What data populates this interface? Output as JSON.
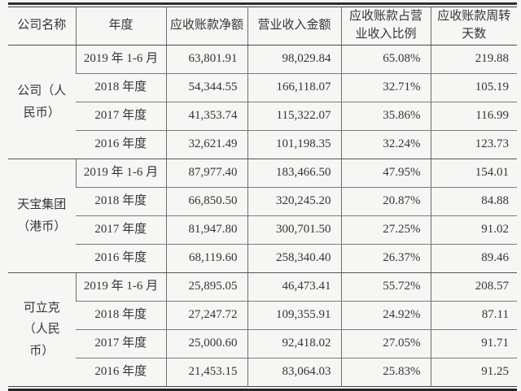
{
  "table": {
    "headers": {
      "company": "公司名称",
      "period": "年度",
      "receivables": "应收账款净额",
      "revenue": "营业收入金额",
      "ratio": "应收账款占营\n业收入比例",
      "days": "应收账款周转\n天数"
    },
    "groups": [
      {
        "company": "公司（人\n民币）",
        "rows": [
          {
            "year": "2019 年 1-6 月",
            "receivables": "63,801.91",
            "revenue": "98,029.84",
            "ratio": "65.08%",
            "days": "219.88"
          },
          {
            "year": "2018 年度",
            "receivables": "54,344.55",
            "revenue": "166,118.07",
            "ratio": "32.71%",
            "days": "105.19"
          },
          {
            "year": "2017 年度",
            "receivables": "41,353.74",
            "revenue": "115,322.07",
            "ratio": "35.86%",
            "days": "116.99"
          },
          {
            "year": "2016 年度",
            "receivables": "32,621.49",
            "revenue": "101,198.35",
            "ratio": "32.24%",
            "days": "123.73"
          }
        ]
      },
      {
        "company": "天宝集团\n（港币）",
        "rows": [
          {
            "year": "2019 年 1-6 月",
            "receivables": "87,977.40",
            "revenue": "183,466.50",
            "ratio": "47.95%",
            "days": "154.01"
          },
          {
            "year": "2018 年度",
            "receivables": "66,850.50",
            "revenue": "320,245.20",
            "ratio": "20.87%",
            "days": "84.88"
          },
          {
            "year": "2017 年度",
            "receivables": "81,947.80",
            "revenue": "300,701.50",
            "ratio": "27.25%",
            "days": "91.02"
          },
          {
            "year": "2016 年度",
            "receivables": "68,119.60",
            "revenue": "258,340.40",
            "ratio": "26.37%",
            "days": "89.46"
          }
        ]
      },
      {
        "company": "可立克\n（人民\n币）",
        "rows": [
          {
            "year": "2019 年 1-6 月",
            "receivables": "25,895.05",
            "revenue": "46,473.41",
            "ratio": "55.72%",
            "days": "208.57"
          },
          {
            "year": "2018 年度",
            "receivables": "27,247.72",
            "revenue": "109,355.91",
            "ratio": "24.92%",
            "days": "87.11"
          },
          {
            "year": "2017 年度",
            "receivables": "25,000.60",
            "revenue": "92,418.02",
            "ratio": "27.05%",
            "days": "91.71"
          },
          {
            "year": "2016 年度",
            "receivables": "21,453.15",
            "revenue": "83,064.03",
            "ratio": "25.83%",
            "days": "91.25"
          }
        ]
      }
    ],
    "colors": {
      "page_background": "#f6f6f4",
      "text": "#3a3a3a",
      "rule_heavy": "#2e2e2e",
      "rule_light": "#7a7a7a"
    }
  }
}
